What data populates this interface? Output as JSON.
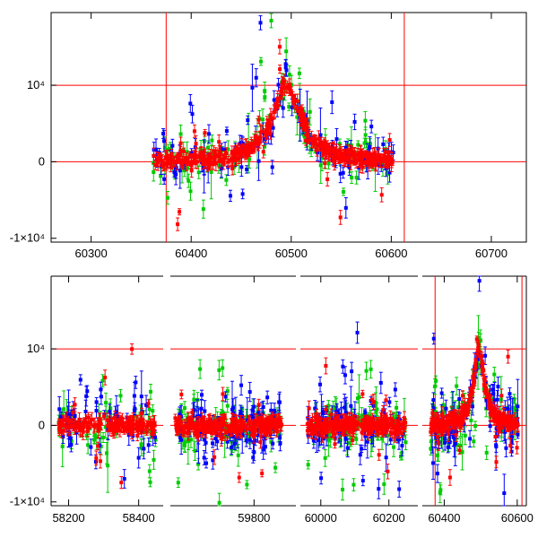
{
  "chart_data": [
    {
      "type": "scatter",
      "title": "",
      "xlabel": "",
      "ylabel": "",
      "xlim": [
        60260,
        60735
      ],
      "ylim": [
        -10500,
        19500
      ],
      "x_ticks": [
        60300,
        60400,
        60500,
        60600,
        60700
      ],
      "y_ticks": [
        {
          "value": -10000,
          "label": "-1×10⁴"
        },
        {
          "value": 0,
          "label": "0"
        },
        {
          "value": 10000,
          "label": "10⁴"
        }
      ],
      "reference_lines": {
        "horizontal": [
          0,
          10000
        ],
        "vertical": [
          60375,
          60613
        ]
      },
      "series": [
        {
          "color": "#ff0000",
          "marker": "square-errorbar",
          "role": "dense-lightcurve"
        },
        {
          "color": "#0000ff",
          "marker": "square-errorbar"
        },
        {
          "color": "#00cc00",
          "marker": "square-errorbar"
        }
      ],
      "model": {
        "profile": "lorentzian",
        "baseline": 0,
        "peak_x": 60495,
        "peak_y": 10000,
        "half_width": 17,
        "x_range": [
          60362,
          60602
        ]
      }
    },
    {
      "type": "scatter",
      "title": "",
      "xlabel": "",
      "ylabel": "",
      "broken_x_axis": true,
      "ylim": [
        -10500,
        19500
      ],
      "y_ticks": [
        {
          "value": -10000,
          "label": "-1×10⁴"
        },
        {
          "value": 0,
          "label": "0"
        },
        {
          "value": 10000,
          "label": "10⁴"
        }
      ],
      "segments": [
        {
          "xlim": [
            58150,
            58470
          ],
          "x_ticks": [
            58200,
            58400
          ],
          "data_range": [
            58170,
            58450
          ]
        },
        {
          "xlim": [
            59620,
            59890
          ],
          "x_ticks": [
            59800
          ],
          "data_range": [
            59630,
            59860
          ]
        },
        {
          "xlim": [
            59940,
            60285
          ],
          "x_ticks": [
            60000,
            60200
          ],
          "data_range": [
            59960,
            60250
          ]
        },
        {
          "xlim": [
            60340,
            60625
          ],
          "x_ticks": [
            60400,
            60600
          ],
          "data_range": [
            60362,
            60602
          ]
        }
      ],
      "reference_lines": {
        "horizontal": [
          0,
          10000
        ],
        "vertical": [
          60375,
          60613
        ]
      },
      "series": [
        {
          "color": "#ff0000",
          "marker": "square-errorbar"
        },
        {
          "color": "#0000ff",
          "marker": "square-errorbar"
        },
        {
          "color": "#00cc00",
          "marker": "square-errorbar"
        }
      ]
    }
  ]
}
